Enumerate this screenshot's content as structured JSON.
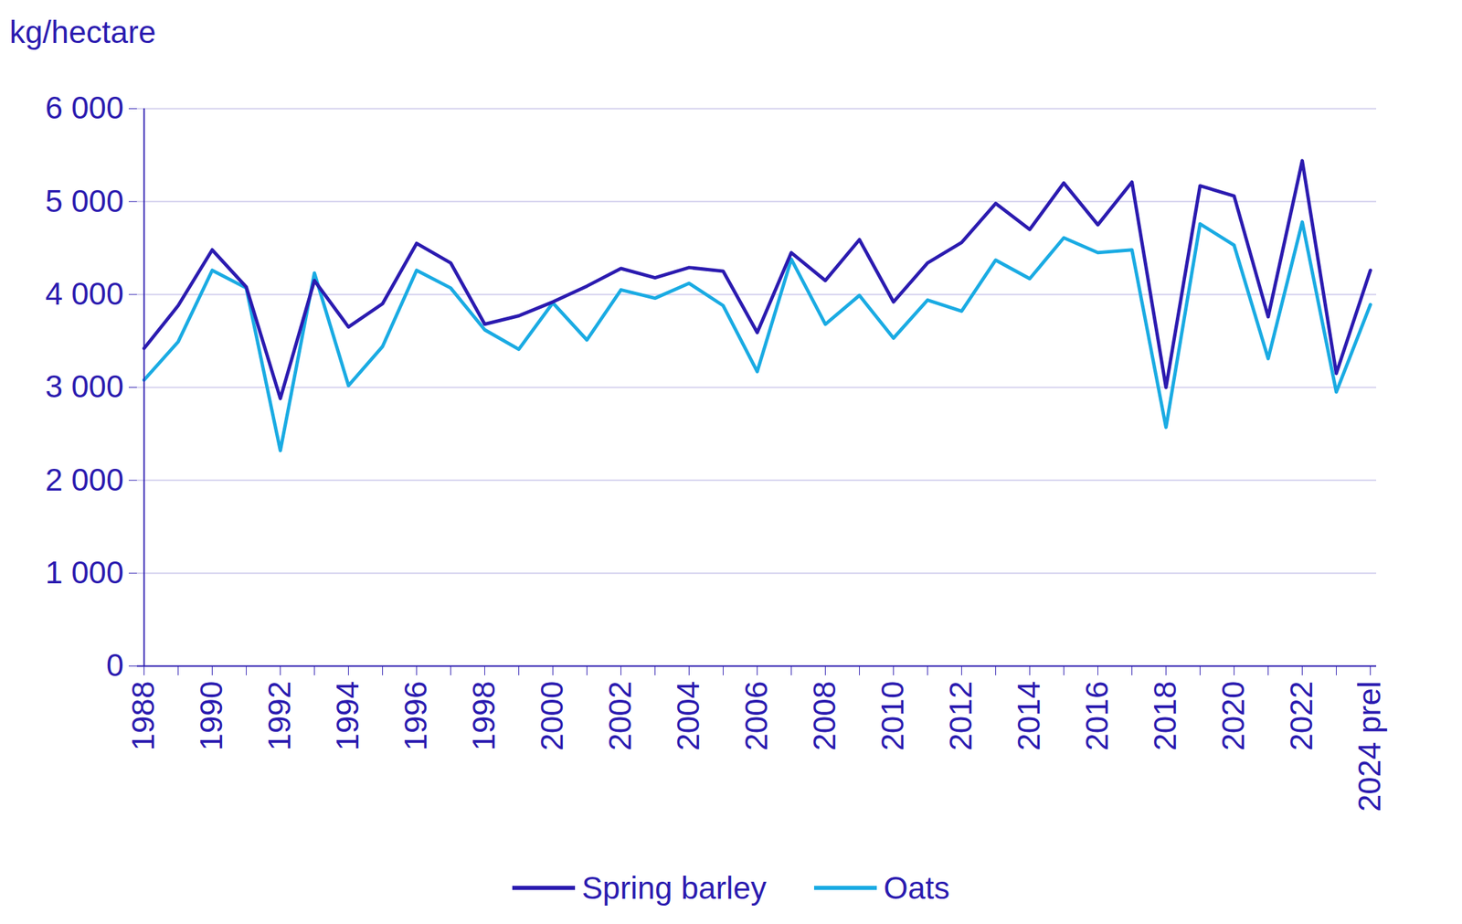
{
  "chart_data": {
    "type": "line",
    "ylabel": "kg/hectare",
    "categories": [
      "1988",
      null,
      "1990",
      null,
      "1992",
      null,
      "1994",
      null,
      "1996",
      null,
      "1998",
      null,
      "2000",
      null,
      "2002",
      null,
      "2004",
      null,
      "2006",
      null,
      "2008",
      null,
      "2010",
      null,
      "2012",
      null,
      "2014",
      null,
      "2016",
      null,
      "2018",
      null,
      "2020",
      null,
      "2022",
      null,
      "2024 prel"
    ],
    "series": [
      {
        "name": "Spring barley",
        "color": "#2b1bb0",
        "values": [
          3420,
          3880,
          4480,
          4080,
          2880,
          4150,
          3650,
          3900,
          4550,
          4340,
          3680,
          3770,
          3920,
          4090,
          4280,
          4180,
          4290,
          4250,
          3590,
          4450,
          4150,
          4590,
          3920,
          4340,
          4560,
          4980,
          4700,
          5200,
          4750,
          5210,
          3000,
          5170,
          5060,
          3760,
          5440,
          3150,
          4260
        ]
      },
      {
        "name": "Oats",
        "color": "#1aabe3",
        "values": [
          3080,
          3490,
          4260,
          4070,
          2320,
          4230,
          3020,
          3440,
          4260,
          4070,
          3620,
          3410,
          3910,
          3510,
          4050,
          3960,
          4120,
          3880,
          3170,
          4380,
          3680,
          3990,
          3530,
          3940,
          3820,
          4370,
          4170,
          4610,
          4450,
          4480,
          2570,
          4760,
          4530,
          3310,
          4780,
          2950,
          3890
        ]
      }
    ],
    "ylim": [
      0,
      6000
    ],
    "yticks": [
      0,
      {
        "value": 1000,
        "label": "1 000"
      },
      {
        "value": 2000,
        "label": "2 000"
      },
      {
        "value": 3000,
        "label": "3 000"
      },
      {
        "value": 4000,
        "label": "4 000"
      },
      {
        "value": 5000,
        "label": "5 000"
      },
      {
        "value": 6000,
        "label": "6 000"
      }
    ],
    "grid": true,
    "legend": "bottom"
  }
}
